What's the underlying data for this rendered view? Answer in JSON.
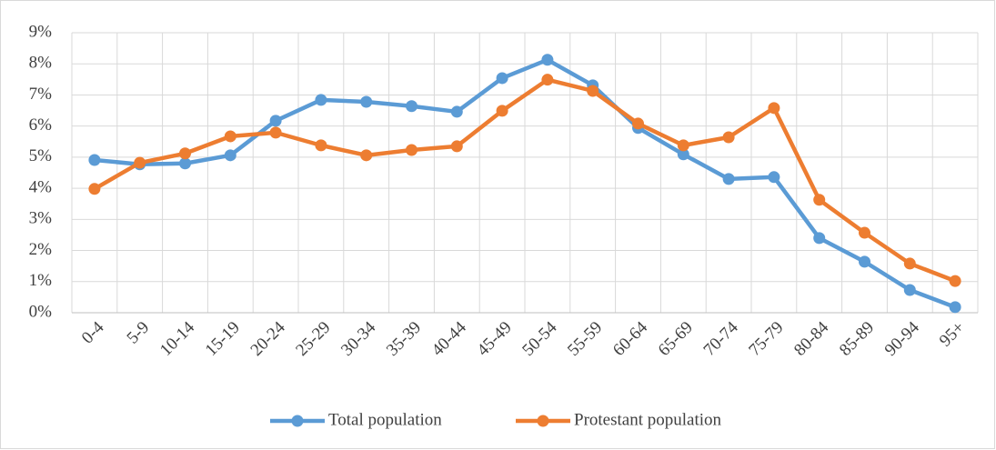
{
  "chart_data": {
    "type": "line",
    "categories": [
      "0-4",
      "5-9",
      "10-14",
      "15-19",
      "20-24",
      "25-29",
      "30-34",
      "35-39",
      "40-44",
      "45-49",
      "50-54",
      "55-59",
      "60-64",
      "65-69",
      "70-74",
      "75-79",
      "80-84",
      "85-89",
      "90-94",
      "95+"
    ],
    "series": [
      {
        "name": "Total population",
        "color": "#5b9bd5",
        "values": [
          4.91,
          4.77,
          4.8,
          5.06,
          6.17,
          6.84,
          6.78,
          6.64,
          6.46,
          7.54,
          8.13,
          7.31,
          5.94,
          5.09,
          4.3,
          4.36,
          2.4,
          1.64,
          0.73,
          0.18
        ]
      },
      {
        "name": "Protestant population",
        "color": "#ed7d31",
        "values": [
          3.98,
          4.82,
          5.12,
          5.67,
          5.79,
          5.38,
          5.06,
          5.23,
          5.35,
          6.49,
          7.49,
          7.13,
          6.08,
          5.38,
          5.64,
          6.58,
          3.63,
          2.57,
          1.58,
          1.02
        ]
      }
    ],
    "ylim": [
      0,
      9
    ],
    "yticks": [
      {
        "value": 0,
        "label": "0%"
      },
      {
        "value": 1,
        "label": "1%"
      },
      {
        "value": 2,
        "label": "2%"
      },
      {
        "value": 3,
        "label": "3%"
      },
      {
        "value": 4,
        "label": "4%"
      },
      {
        "value": 5,
        "label": "5%"
      },
      {
        "value": 6,
        "label": "6%"
      },
      {
        "value": 7,
        "label": "7%"
      },
      {
        "value": 8,
        "label": "8%"
      },
      {
        "value": 9,
        "label": "9%"
      }
    ],
    "grid": true,
    "legend": "bottom"
  }
}
